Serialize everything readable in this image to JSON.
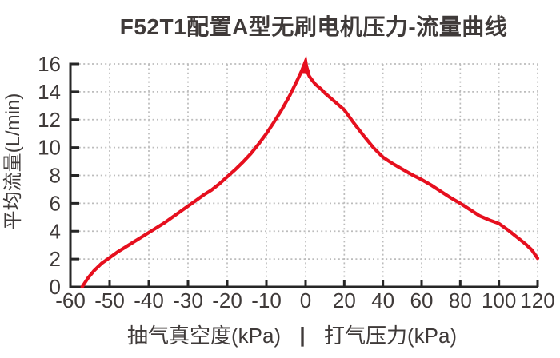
{
  "title": "F52T1配置A型无刷电机压力-流量曲线",
  "colors": {
    "curve_red": "#e60f1e",
    "axis": "#262626",
    "grid": "#bcbcbc",
    "text": "#3f3a39",
    "background": "#ffffff"
  },
  "chart_data": {
    "type": "line",
    "title": "F52T1配置A型无刷电机压力-流量曲线",
    "ylabel": "平均流量(L/min)",
    "xlabel_left": "抽气真空度(kPa)",
    "xlabel_separator": "|",
    "xlabel_right": "打气压力(kPa)",
    "ylim": [
      0,
      16
    ],
    "xlim": [
      -60,
      120
    ],
    "y_ticks": [
      0,
      2,
      4,
      6,
      8,
      10,
      12,
      14,
      16
    ],
    "x_ticks_left": [
      -60,
      -50,
      -40,
      -30,
      -20,
      -10
    ],
    "x_ticks_right": [
      0,
      20,
      40,
      60,
      80,
      100,
      120
    ],
    "x_axis_layout": "dual scale: left half 10 kPa per division, right half 20 kPa per division, equal pixel spacing per division",
    "grid": true,
    "legend": "none",
    "peak_marker": "arrowhead at curve peak (0 kPa, ~16 L/min)",
    "series": [
      {
        "name": "压力-流量曲线",
        "color": "#e60f1e",
        "points": [
          [
            -57,
            0
          ],
          [
            -55.5,
            0.65
          ],
          [
            -54,
            1.15
          ],
          [
            -52,
            1.7
          ],
          [
            -50,
            2.1
          ],
          [
            -48,
            2.5
          ],
          [
            -46,
            2.85
          ],
          [
            -44,
            3.2
          ],
          [
            -42,
            3.55
          ],
          [
            -40,
            3.9
          ],
          [
            -38,
            4.25
          ],
          [
            -36,
            4.6
          ],
          [
            -34,
            5.0
          ],
          [
            -32,
            5.4
          ],
          [
            -30,
            5.8
          ],
          [
            -28,
            6.2
          ],
          [
            -26,
            6.6
          ],
          [
            -24,
            6.95
          ],
          [
            -22,
            7.4
          ],
          [
            -20,
            7.9
          ],
          [
            -18,
            8.4
          ],
          [
            -16,
            8.95
          ],
          [
            -14,
            9.55
          ],
          [
            -12,
            10.25
          ],
          [
            -10,
            11.0
          ],
          [
            -8,
            11.85
          ],
          [
            -6,
            12.75
          ],
          [
            -4,
            13.75
          ],
          [
            -2,
            14.9
          ],
          [
            -1,
            15.5
          ],
          [
            0,
            16.2
          ],
          [
            1,
            15.4
          ],
          [
            2,
            15.1
          ],
          [
            3,
            14.9
          ],
          [
            5,
            14.55
          ],
          [
            8,
            14.2
          ],
          [
            10,
            13.9
          ],
          [
            15,
            13.3
          ],
          [
            20,
            12.7
          ],
          [
            25,
            11.75
          ],
          [
            30,
            10.85
          ],
          [
            35,
            10.0
          ],
          [
            40,
            9.3
          ],
          [
            45,
            8.85
          ],
          [
            50,
            8.45
          ],
          [
            55,
            8.05
          ],
          [
            60,
            7.7
          ],
          [
            65,
            7.3
          ],
          [
            70,
            6.85
          ],
          [
            75,
            6.4
          ],
          [
            80,
            6.0
          ],
          [
            85,
            5.55
          ],
          [
            90,
            5.1
          ],
          [
            95,
            4.8
          ],
          [
            100,
            4.55
          ],
          [
            105,
            4.05
          ],
          [
            110,
            3.5
          ],
          [
            114,
            3.05
          ],
          [
            117,
            2.65
          ],
          [
            120,
            2.05
          ]
        ]
      }
    ]
  }
}
